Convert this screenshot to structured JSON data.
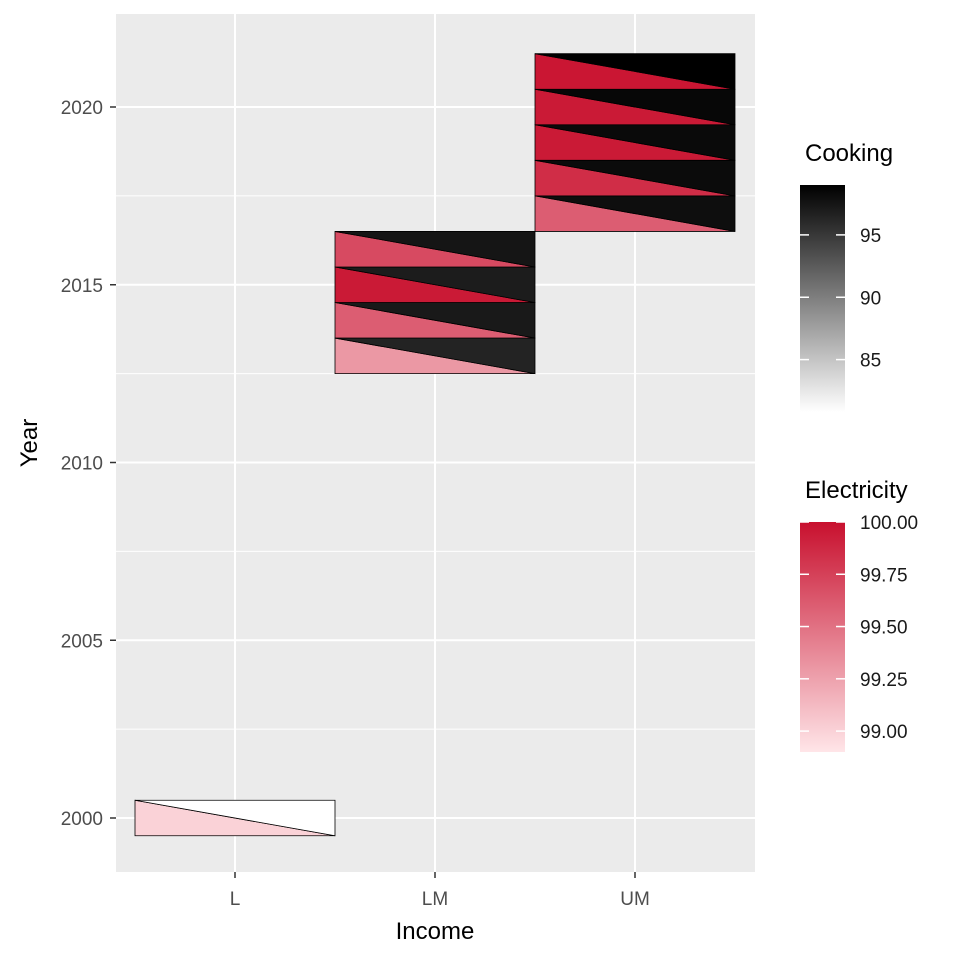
{
  "colors": {
    "panel_background": "#ebebeb",
    "grid_line": "#ffffff",
    "electricity_low": "#ffe5e8",
    "electricity_high": "#c8102e",
    "cooking_low": "#ffffff",
    "cooking_high": "#000000",
    "tile_border": "#000000"
  },
  "chart_data": {
    "type": "heatmap",
    "xlabel": "Income",
    "ylabel": "Year",
    "x_categories": [
      "L",
      "LM",
      "UM"
    ],
    "y_ticks": [
      2000,
      2005,
      2010,
      2015,
      2020
    ],
    "ylim": [
      1998.5,
      2022.3
    ],
    "grid": true,
    "cells": [
      {
        "income": "L",
        "year": 2000,
        "electricity": 99.0,
        "cooking": 80.8
      },
      {
        "income": "LM",
        "year": 2013,
        "electricity": 99.3,
        "cooking": 96.5
      },
      {
        "income": "LM",
        "year": 2014,
        "electricity": 99.6,
        "cooking": 97.2
      },
      {
        "income": "LM",
        "year": 2015,
        "electricity": 99.95,
        "cooking": 97.0
      },
      {
        "income": "LM",
        "year": 2016,
        "electricity": 99.7,
        "cooking": 97.5
      },
      {
        "income": "UM",
        "year": 2017,
        "electricity": 99.6,
        "cooking": 98.0
      },
      {
        "income": "UM",
        "year": 2018,
        "electricity": 99.85,
        "cooking": 98.2
      },
      {
        "income": "UM",
        "year": 2019,
        "electricity": 99.95,
        "cooking": 98.3
      },
      {
        "income": "UM",
        "year": 2020,
        "electricity": 99.95,
        "cooking": 98.5
      },
      {
        "income": "UM",
        "year": 2021,
        "electricity": 99.97,
        "cooking": 99.0
      }
    ],
    "legends": [
      {
        "title": "Cooking",
        "variable": "cooking",
        "range": [
          80.8,
          99.0
        ],
        "breaks": [
          85,
          90,
          95
        ],
        "labels": [
          "85",
          "90",
          "95"
        ],
        "position": "right"
      },
      {
        "title": "Electricity",
        "variable": "electricity",
        "range": [
          98.9,
          100.0
        ],
        "breaks": [
          99.0,
          99.25,
          99.5,
          99.75,
          100.0
        ],
        "labels": [
          "99.00",
          "99.25",
          "99.50",
          "99.75",
          "100.00"
        ],
        "position": "right"
      }
    ]
  }
}
